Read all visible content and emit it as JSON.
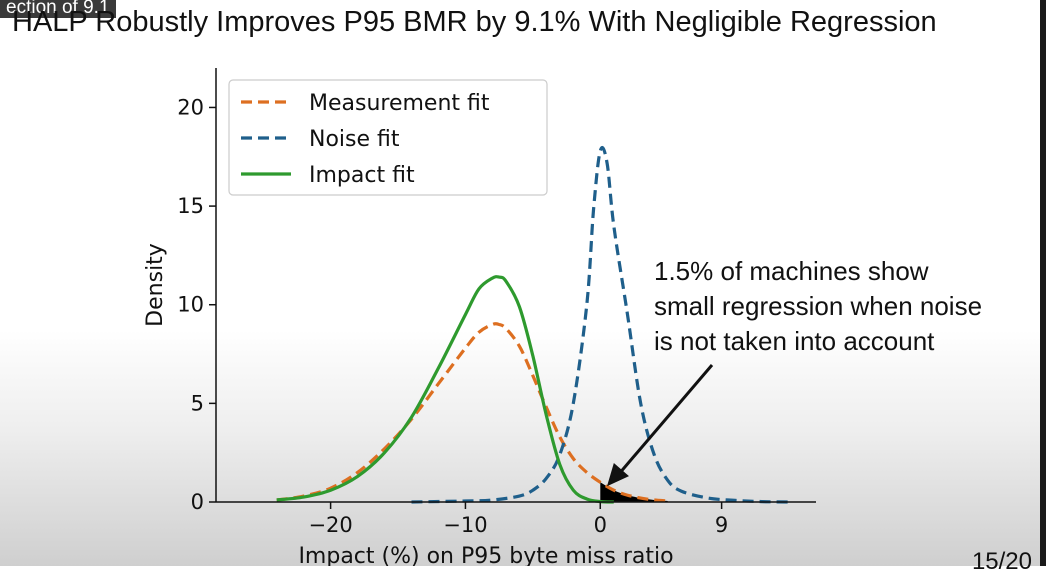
{
  "caption": {
    "text": "ection of 9.1"
  },
  "slide": {
    "title": "HALP Robustly Improves P95 BMR by 9.1% With Negligible Regression",
    "page": "15/20"
  },
  "colors": {
    "measurement": "#dd6f21",
    "noise": "#1f5f8b",
    "impact": "#2e9a2e",
    "shaded_region": "#000000"
  },
  "chart_data": {
    "type": "line",
    "title": "",
    "xlabel": "Impact (%) on P95 byte miss ratio",
    "ylabel": "Density",
    "xlim": [
      -28.5,
      16
    ],
    "ylim": [
      0,
      22
    ],
    "xticks": [
      -20,
      -10,
      0,
      9
    ],
    "yticks": [
      0,
      5,
      10,
      15,
      20
    ],
    "grid": false,
    "legend_position": "upper-left",
    "series": [
      {
        "name": "Measurement fit",
        "style": "dashed",
        "color": "#dd6f21",
        "x": [
          -24,
          -22,
          -20,
          -18,
          -16,
          -14,
          -12,
          -10,
          -9,
          -8,
          -7.5,
          -7,
          -6,
          -5,
          -4,
          -3,
          -2,
          -1,
          0,
          1,
          2,
          3,
          4,
          5
        ],
        "y": [
          0.1,
          0.3,
          0.7,
          1.5,
          2.7,
          4.2,
          6.0,
          7.8,
          8.6,
          9.0,
          9.0,
          8.8,
          7.9,
          6.4,
          4.8,
          3.3,
          2.2,
          1.5,
          1.0,
          0.6,
          0.35,
          0.2,
          0.1,
          0.05
        ]
      },
      {
        "name": "Noise fit",
        "style": "dashed",
        "color": "#1f5f8b",
        "x": [
          -14,
          -10,
          -8,
          -6,
          -5,
          -4,
          -3,
          -2,
          -1,
          -0.5,
          0,
          0.5,
          1,
          2,
          3,
          4,
          5,
          6,
          8,
          10,
          12,
          14
        ],
        "y": [
          0.0,
          0.05,
          0.1,
          0.3,
          0.6,
          1.2,
          2.4,
          5.0,
          10.0,
          14.8,
          17.8,
          17.2,
          14.0,
          9.6,
          5.0,
          2.4,
          1.1,
          0.55,
          0.2,
          0.08,
          0.02,
          0.0
        ]
      },
      {
        "name": "Impact fit",
        "style": "solid",
        "color": "#2e9a2e",
        "x": [
          -24,
          -22,
          -20,
          -18,
          -16,
          -14,
          -12,
          -10,
          -9,
          -8,
          -7.5,
          -7,
          -6,
          -5,
          -4,
          -3,
          -2,
          -1,
          0,
          1
        ],
        "y": [
          0.1,
          0.25,
          0.6,
          1.3,
          2.5,
          4.3,
          6.8,
          9.5,
          10.8,
          11.35,
          11.4,
          11.2,
          9.9,
          7.4,
          4.4,
          1.9,
          0.6,
          0.15,
          0.02,
          0.0
        ]
      }
    ],
    "shaded_area": {
      "series": "Measurement fit",
      "from_x": 0,
      "description_value": "1.5%"
    },
    "annotation": {
      "lines": [
        "1.5% of machines show",
        "small regression when noise",
        "is not taken into account"
      ],
      "arrow_to": [
        0.5,
        0.8
      ]
    }
  }
}
